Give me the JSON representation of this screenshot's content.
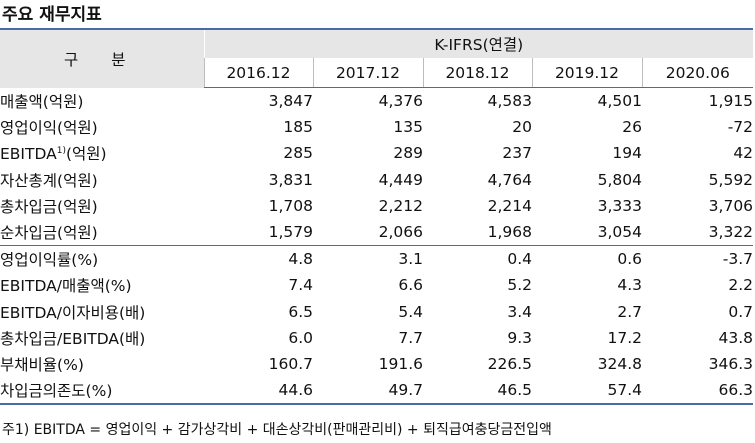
{
  "title": "주요 재무지표",
  "header": {
    "gubun": "구 분",
    "kifrs": "K-IFRS(연결)",
    "years": [
      "2016.12",
      "2017.12",
      "2018.12",
      "2019.12",
      "2020.06"
    ]
  },
  "rows": [
    {
      "label": "매출액(억원)",
      "values": [
        "3,847",
        "4,376",
        "4,583",
        "4,501",
        "1,915"
      ]
    },
    {
      "label": "영업이익(억원)",
      "values": [
        "185",
        "135",
        "20",
        "26",
        "-72"
      ]
    },
    {
      "label_pre": "EBITDA",
      "label_sup": "1)",
      "label_post": "(억원)",
      "values": [
        "285",
        "289",
        "237",
        "194",
        "42"
      ]
    },
    {
      "label": "자산총계(억원)",
      "values": [
        "3,831",
        "4,449",
        "4,764",
        "5,804",
        "5,592"
      ]
    },
    {
      "label": "총차입금(억원)",
      "values": [
        "1,708",
        "2,212",
        "2,214",
        "3,333",
        "3,706"
      ]
    },
    {
      "label": "순차입금(억원)",
      "values": [
        "1,579",
        "2,066",
        "1,968",
        "3,054",
        "3,322"
      ]
    },
    {
      "label": "영업이익률(%)",
      "values": [
        "4.8",
        "3.1",
        "0.4",
        "0.6",
        "-3.7"
      ]
    },
    {
      "label": "EBITDA/매출액(%)",
      "values": [
        "7.4",
        "6.6",
        "5.2",
        "4.3",
        "2.2"
      ]
    },
    {
      "label": "EBITDA/이자비용(배)",
      "values": [
        "6.5",
        "5.4",
        "3.4",
        "2.7",
        "0.7"
      ]
    },
    {
      "label": "총차입금/EBITDA(배)",
      "values": [
        "6.0",
        "7.7",
        "9.3",
        "17.2",
        "43.8"
      ]
    },
    {
      "label": "부채비율(%)",
      "values": [
        "160.7",
        "191.6",
        "226.5",
        "324.8",
        "346.3"
      ]
    },
    {
      "label": "차입금의존도(%)",
      "values": [
        "44.6",
        "49.7",
        "46.5",
        "57.4",
        "66.3"
      ]
    }
  ],
  "footnote": "주1) EBITDA = 영업이익 + 감가상각비 + 대손상각비(판매관리비) + 퇴직급여충당금전입액"
}
